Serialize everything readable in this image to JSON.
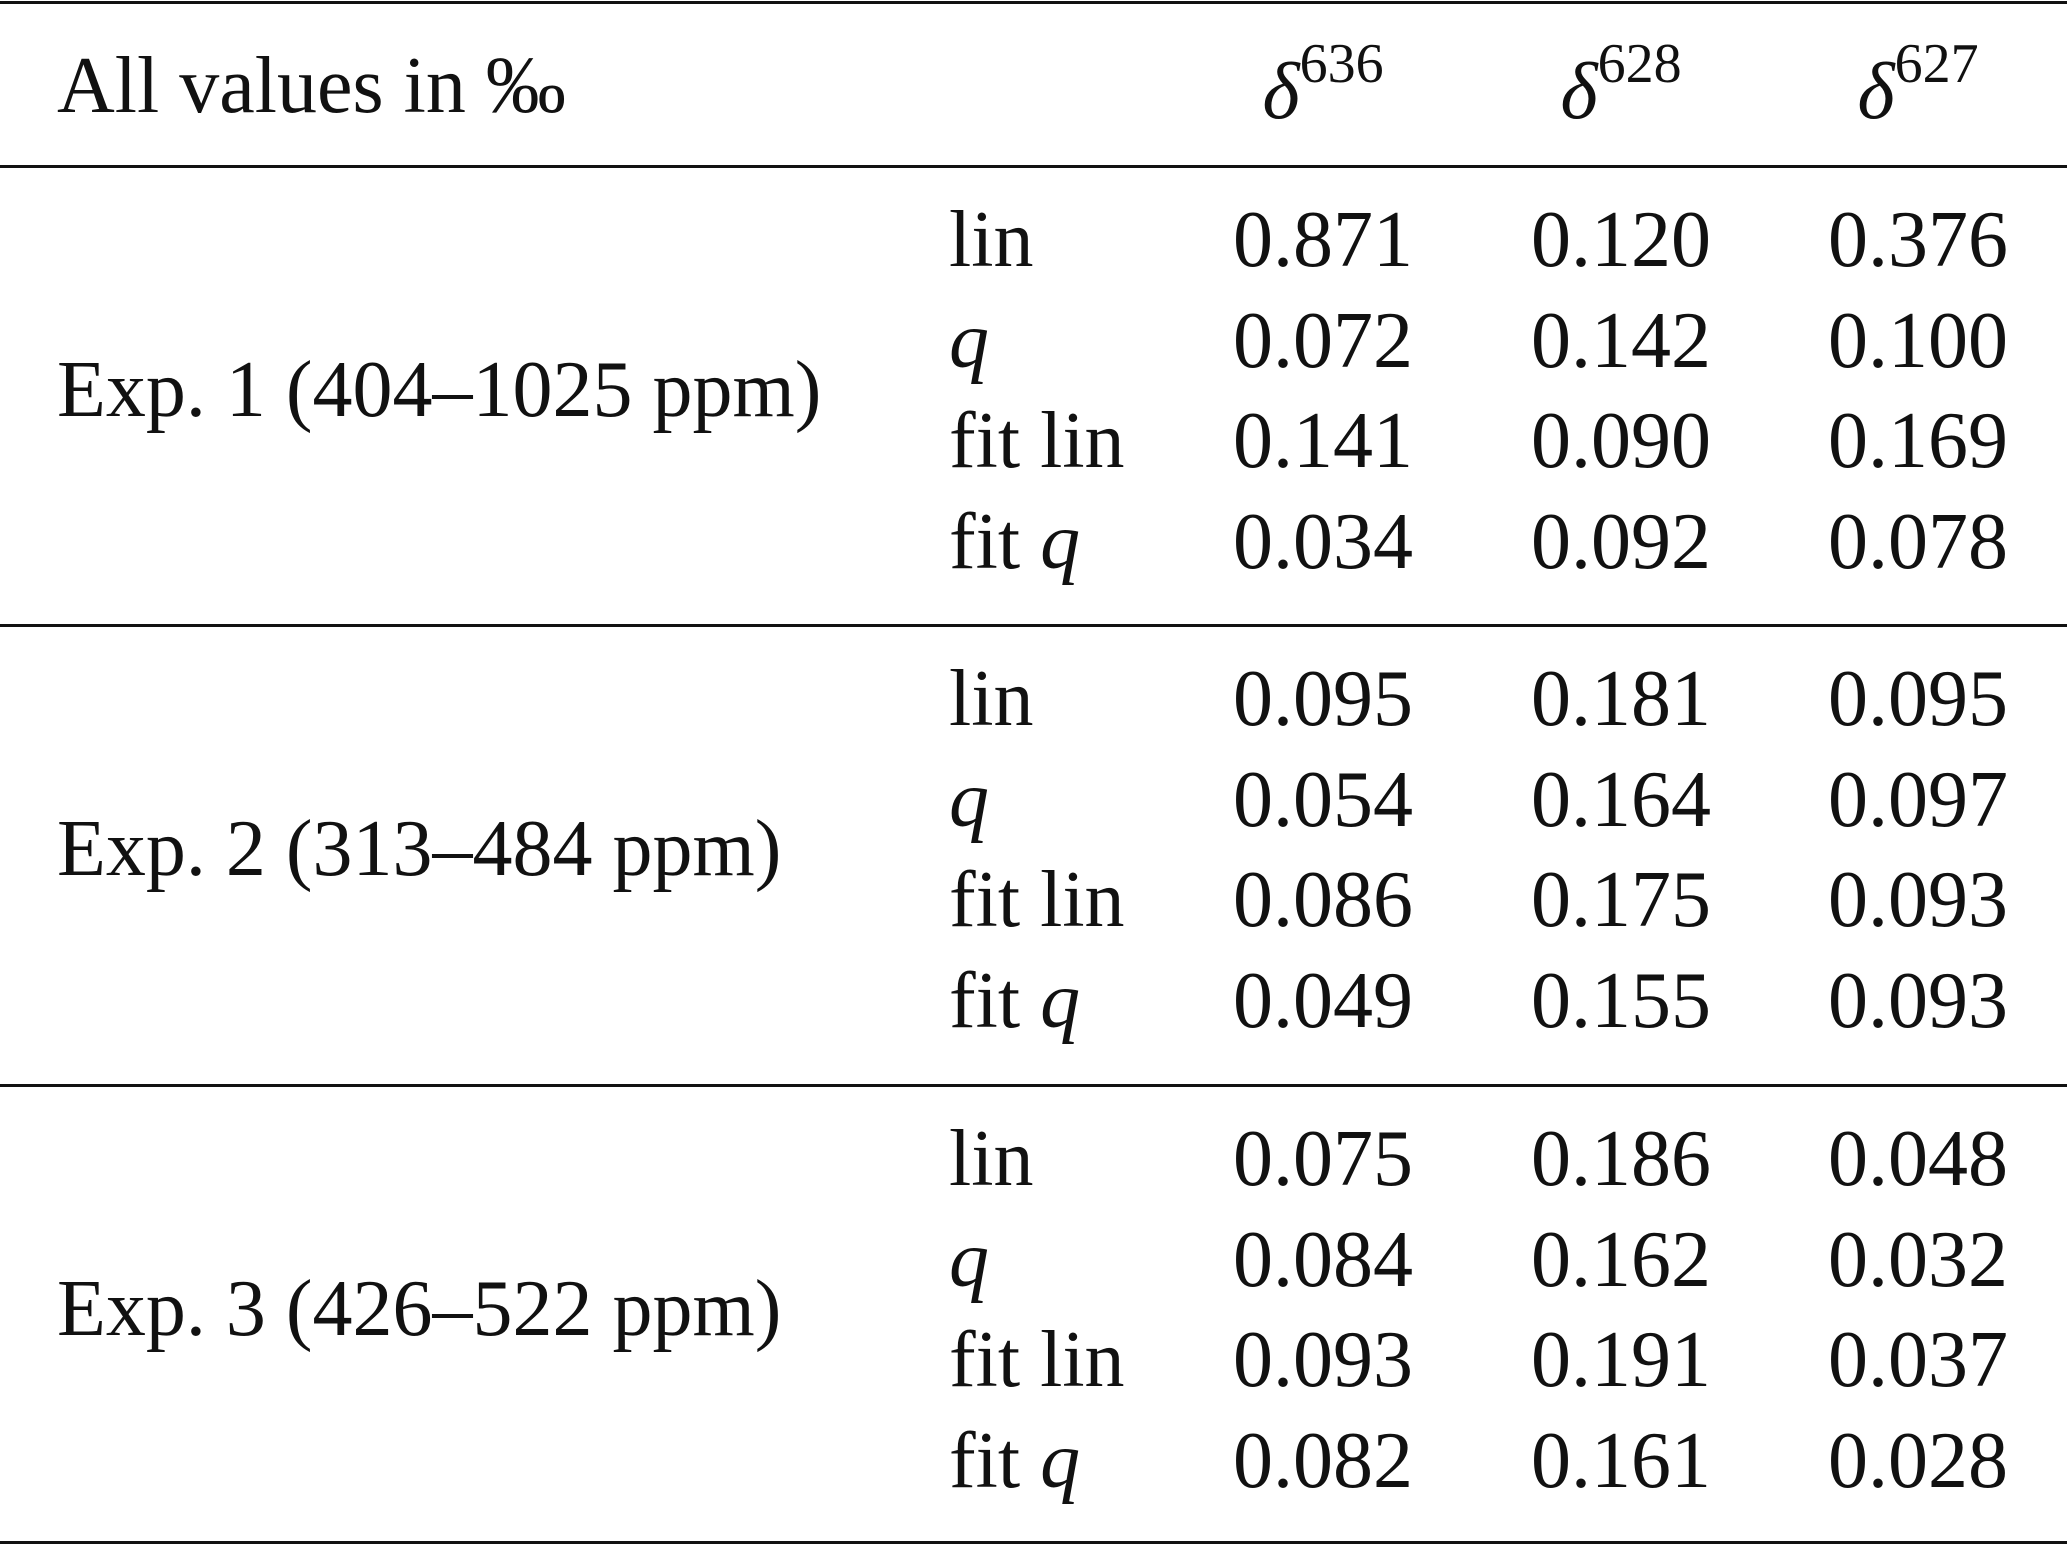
{
  "header": {
    "label": "All values in ‰",
    "columns": [
      {
        "symbol": "δ",
        "superscript": "636"
      },
      {
        "symbol": "δ",
        "superscript": "628"
      },
      {
        "symbol": "δ",
        "superscript": "627"
      }
    ]
  },
  "groups": [
    {
      "label": "Exp. 1 (404–1025 ppm)",
      "rows": [
        {
          "method": {
            "plain": "lin"
          },
          "values": [
            "0.871",
            "0.120",
            "0.376"
          ]
        },
        {
          "method": {
            "italic": "q"
          },
          "values": [
            "0.072",
            "0.142",
            "0.100"
          ]
        },
        {
          "method": {
            "plain": "fit lin"
          },
          "values": [
            "0.141",
            "0.090",
            "0.169"
          ]
        },
        {
          "method": {
            "plain": "fit",
            "italic": "q"
          },
          "values": [
            "0.034",
            "0.092",
            "0.078"
          ]
        }
      ]
    },
    {
      "label": "Exp. 2 (313–484 ppm)",
      "rows": [
        {
          "method": {
            "plain": "lin"
          },
          "values": [
            "0.095",
            "0.181",
            "0.095"
          ]
        },
        {
          "method": {
            "italic": "q"
          },
          "values": [
            "0.054",
            "0.164",
            "0.097"
          ]
        },
        {
          "method": {
            "plain": "fit lin"
          },
          "values": [
            "0.086",
            "0.175",
            "0.093"
          ]
        },
        {
          "method": {
            "plain": "fit",
            "italic": "q"
          },
          "values": [
            "0.049",
            "0.155",
            "0.093"
          ]
        }
      ]
    },
    {
      "label": "Exp. 3 (426–522 ppm)",
      "rows": [
        {
          "method": {
            "plain": "lin"
          },
          "values": [
            "0.075",
            "0.186",
            "0.048"
          ]
        },
        {
          "method": {
            "italic": "q"
          },
          "values": [
            "0.084",
            "0.162",
            "0.032"
          ]
        },
        {
          "method": {
            "plain": "fit lin"
          },
          "values": [
            "0.093",
            "0.191",
            "0.037"
          ]
        },
        {
          "method": {
            "plain": "fit",
            "italic": "q"
          },
          "values": [
            "0.082",
            "0.161",
            "0.028"
          ]
        }
      ]
    }
  ]
}
